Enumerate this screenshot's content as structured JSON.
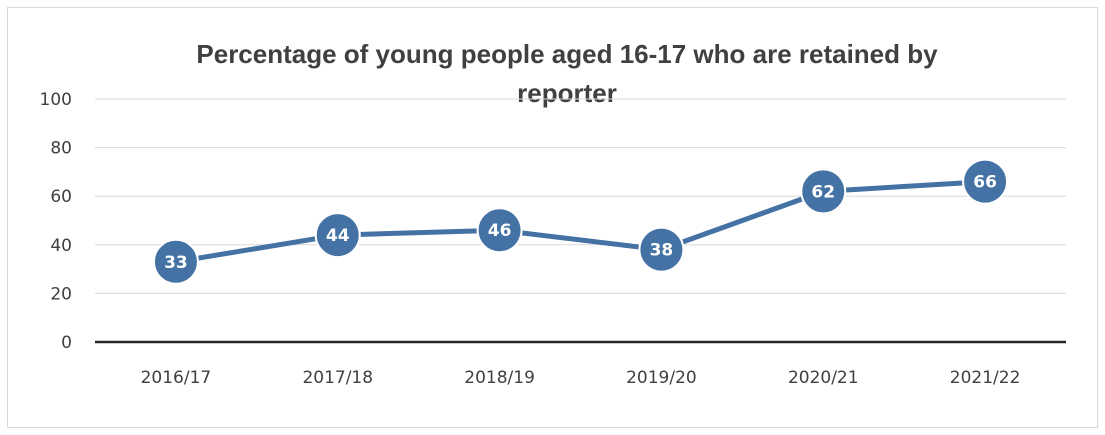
{
  "chart_data": {
    "type": "line",
    "title": "Percentage of young people aged 16-17 who are retained by reporter",
    "title_lines": [
      "Percentage of young people aged 16-17 who are retained by",
      "reporter"
    ],
    "categories": [
      "2016/17",
      "2017/18",
      "2018/19",
      "2019/20",
      "2020/21",
      "2021/22"
    ],
    "series": [
      {
        "values": [
          33,
          44,
          46,
          38,
          62,
          66
        ]
      }
    ],
    "y_ticks": [
      0,
      20,
      40,
      60,
      80,
      100
    ],
    "ylim": [
      0,
      100
    ],
    "grid": true,
    "legend": "none",
    "data_labels": true,
    "colors": {
      "line": "#4472a4",
      "marker_fill": "#4472a4",
      "marker_border": "#ffffff",
      "grid": "#d9d9d9",
      "axis": "#262626"
    }
  }
}
